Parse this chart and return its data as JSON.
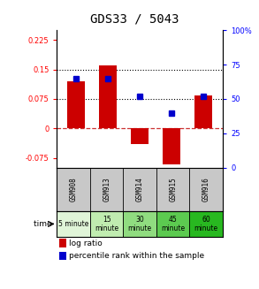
{
  "title": "GDS33 / 5043",
  "samples": [
    "GSM908",
    "GSM913",
    "GSM914",
    "GSM915",
    "GSM916"
  ],
  "time_labels": [
    "5 minute",
    "15\nminute",
    "30\nminute",
    "45\nminute",
    "60\nminute"
  ],
  "log_ratios": [
    0.12,
    0.16,
    -0.04,
    -0.092,
    0.085
  ],
  "percentile_ranks": [
    65,
    65,
    52,
    40,
    52
  ],
  "ylim_left": [
    -0.1,
    0.25
  ],
  "ylim_right": [
    0,
    100
  ],
  "yticks_left": [
    -0.075,
    0,
    0.075,
    0.15,
    0.225
  ],
  "ytick_labels_left": [
    "-0.075",
    "0",
    "0.075",
    "0.15",
    "0.225"
  ],
  "yticks_right": [
    0,
    25,
    50,
    75,
    100
  ],
  "ytick_labels_right": [
    "0",
    "25",
    "50",
    "75",
    "100%"
  ],
  "bar_color": "#cc0000",
  "dot_color": "#0000cc",
  "hline1": 0.075,
  "hline2": 0.15,
  "zero_line": 0.0,
  "bar_width": 0.55,
  "background_color": "#ffffff",
  "sample_bg": "#c8c8c8",
  "time_colors": [
    "#e0f5d8",
    "#c0ecb0",
    "#90dc80",
    "#5cca50",
    "#28b820"
  ],
  "title_fontsize": 10
}
